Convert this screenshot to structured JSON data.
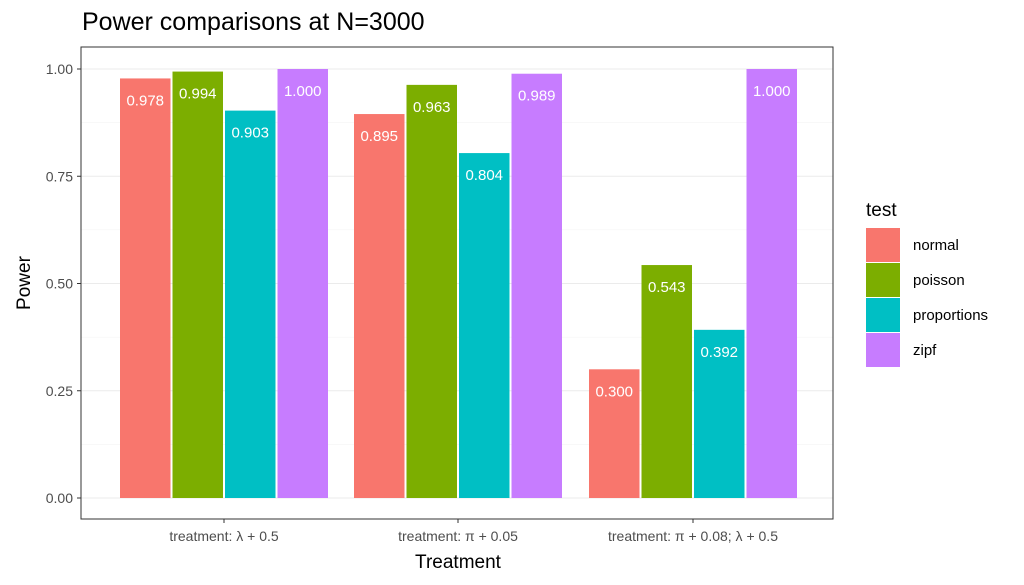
{
  "chart_data": {
    "type": "bar",
    "title": "Power comparisons at N=3000",
    "xlabel": "Treatment",
    "ylabel": "Power",
    "ylim": [
      0,
      1.05
    ],
    "yticks": [
      "0.00",
      "0.25",
      "0.50",
      "0.75",
      "1.00"
    ],
    "grid": true,
    "legend_position": "right",
    "legend_title": "test",
    "categories": [
      "treatment: λ + 0.5",
      "treatment: π + 0.05",
      "treatment: π + 0.08; λ + 0.5"
    ],
    "series": [
      {
        "name": "normal",
        "color": "#f8766d",
        "values": [
          0.978,
          0.895,
          0.3
        ],
        "labels": [
          "0.978",
          "0.895",
          "0.300"
        ]
      },
      {
        "name": "poisson",
        "color": "#7cae00",
        "values": [
          0.994,
          0.963,
          0.543
        ],
        "labels": [
          "0.994",
          "0.963",
          "0.543"
        ]
      },
      {
        "name": "proportions",
        "color": "#00bfc4",
        "values": [
          0.903,
          0.804,
          0.392
        ],
        "labels": [
          "0.903",
          "0.804",
          "0.392"
        ]
      },
      {
        "name": "zipf",
        "color": "#c77cff",
        "values": [
          1.0,
          0.989,
          1.0
        ],
        "labels": [
          "1.000",
          "0.989",
          "1.000"
        ]
      }
    ]
  }
}
